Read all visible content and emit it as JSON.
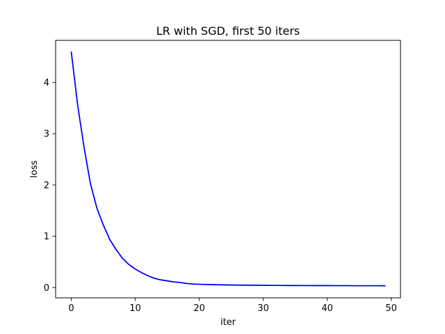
{
  "chart_data": {
    "type": "line",
    "title": "LR with SGD, first 50 iters",
    "xlabel": "iter",
    "ylabel": "loss",
    "xlim": [
      -2.45,
      51.45
    ],
    "ylim": [
      -0.2,
      4.82
    ],
    "xticks": [
      0,
      10,
      20,
      30,
      40,
      50
    ],
    "yticks": [
      0,
      1,
      2,
      3,
      4
    ],
    "grid": false,
    "legend": "none",
    "series": [
      {
        "color": "#0000ff",
        "x": [
          0,
          1,
          2,
          3,
          4,
          5,
          6,
          7,
          8,
          9,
          10,
          11,
          12,
          13,
          14,
          15,
          16,
          17,
          18,
          19,
          20,
          21,
          22,
          23,
          24,
          25,
          26,
          27,
          28,
          29,
          30,
          31,
          32,
          33,
          34,
          35,
          36,
          37,
          38,
          39,
          40,
          41,
          42,
          43,
          44,
          45,
          46,
          47,
          48,
          49
        ],
        "values": [
          4.59,
          3.55,
          2.73,
          2.02,
          1.55,
          1.22,
          0.94,
          0.74,
          0.57,
          0.45,
          0.36,
          0.29,
          0.23,
          0.18,
          0.15,
          0.13,
          0.11,
          0.1,
          0.08,
          0.07,
          0.065,
          0.06,
          0.057,
          0.054,
          0.052,
          0.05,
          0.048,
          0.047,
          0.046,
          0.045,
          0.044,
          0.043,
          0.042,
          0.041,
          0.04,
          0.04,
          0.039,
          0.039,
          0.038,
          0.038,
          0.038,
          0.037,
          0.037,
          0.037,
          0.036,
          0.036,
          0.036,
          0.036,
          0.036,
          0.035
        ]
      }
    ]
  }
}
